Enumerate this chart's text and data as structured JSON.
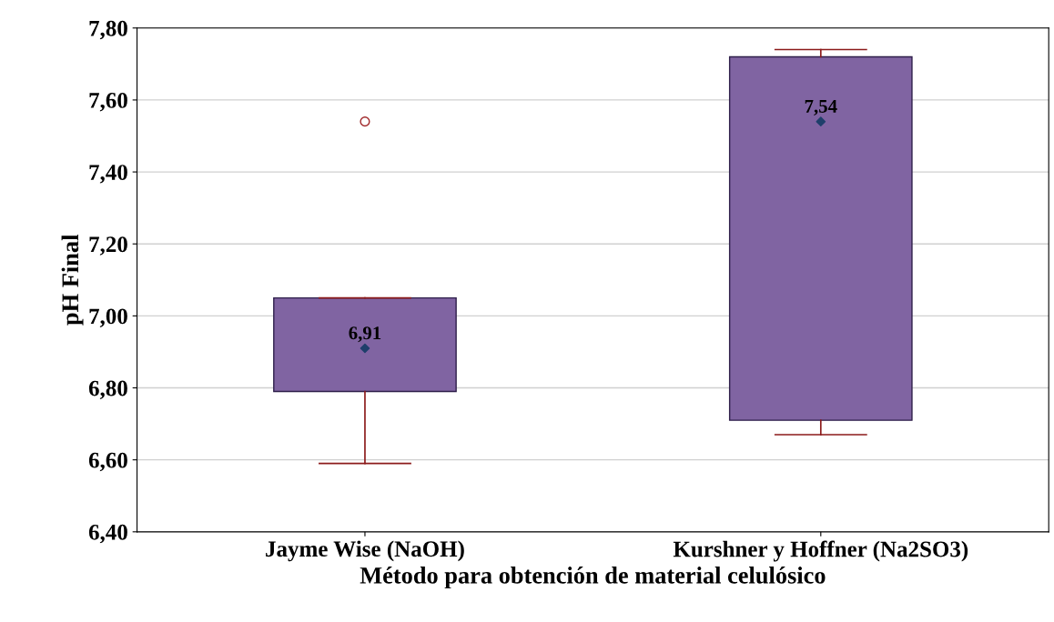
{
  "chart_data": {
    "type": "box",
    "xlabel": "Método para obtención de material celulósico",
    "ylabel": "pH Final",
    "categories": [
      "Jayme Wise (NaOH)",
      "Kurshner y Hoffner (Na2SO3)"
    ],
    "boxes": [
      {
        "low": 6.59,
        "q1": 6.79,
        "median": 6.91,
        "q3": 7.05,
        "high": 7.05,
        "outliers": [
          7.54
        ]
      },
      {
        "low": 6.67,
        "q1": 6.71,
        "median": 7.54,
        "q3": 7.72,
        "high": 7.74
      }
    ],
    "value_labels": [
      "6,91",
      "7,54"
    ],
    "color": "#8064a2",
    "marker": "diamond",
    "grid": "y",
    "ylim": [
      6.4,
      7.8
    ],
    "yticks": [
      {
        "value": 6.4,
        "label": "6,40"
      },
      {
        "value": 6.6,
        "label": "6,60"
      },
      {
        "value": 6.8,
        "label": "6,80"
      },
      {
        "value": 7.0,
        "label": "7,00"
      },
      {
        "value": 7.2,
        "label": "7,20"
      },
      {
        "value": 7.4,
        "label": "7,40"
      },
      {
        "value": 7.6,
        "label": "7,60"
      },
      {
        "value": 7.8,
        "label": "7,80"
      }
    ]
  }
}
